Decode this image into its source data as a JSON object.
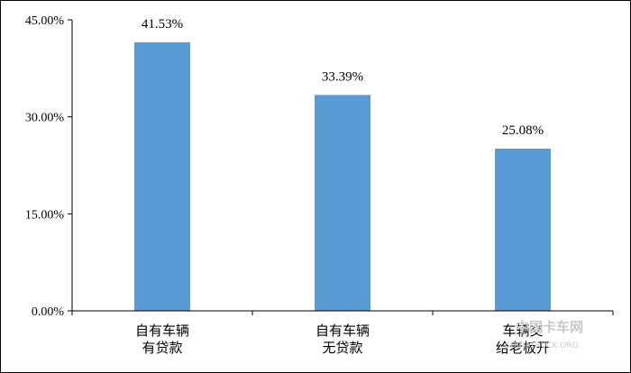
{
  "chart_data": {
    "type": "bar",
    "categories": [
      [
        "自有车辆",
        "有贷款"
      ],
      [
        "自有车辆",
        "无贷款"
      ],
      [
        "车辆交",
        "给老板开"
      ]
    ],
    "values": [
      41.53,
      33.39,
      25.08
    ],
    "data_labels": [
      "41.53%",
      "33.39%",
      "25.08%"
    ],
    "ylim": [
      0,
      45
    ],
    "yticks": [
      {
        "value": 0,
        "label": "0.00%"
      },
      {
        "value": 15,
        "label": "15.00%"
      },
      {
        "value": 30,
        "label": "30.00%"
      },
      {
        "value": 45,
        "label": "45.00%"
      }
    ],
    "bar_color": "#5b9bd5",
    "grid": false,
    "legend": "none"
  },
  "watermark": {
    "text": "中国卡车网",
    "sub": "CHINATRUCK.ORG"
  }
}
